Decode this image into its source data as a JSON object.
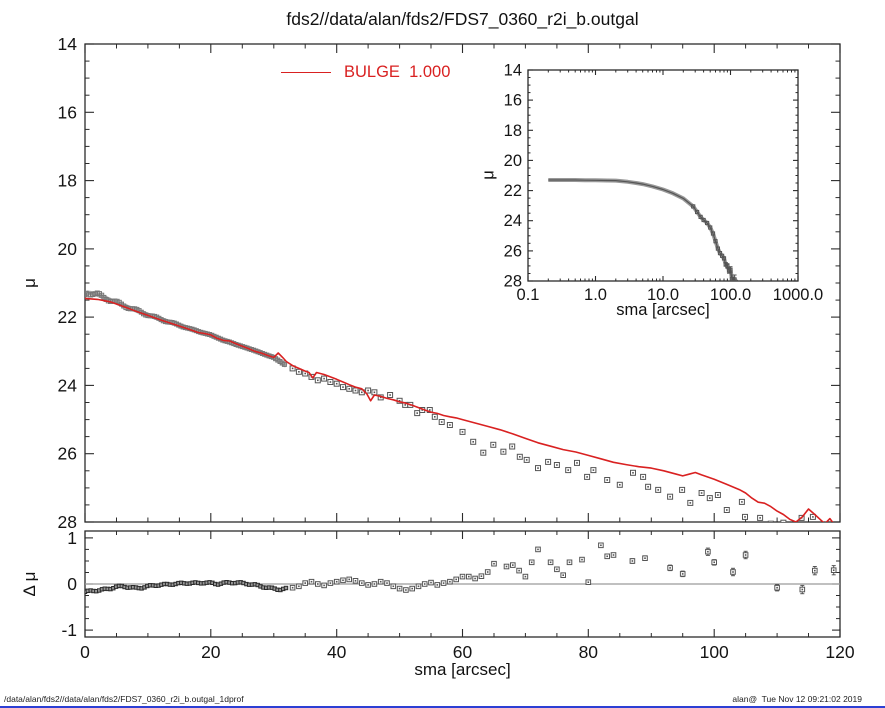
{
  "header": {
    "title": "fds2//data/alan/fds2/FDS7_0360_r2i_b.outgal"
  },
  "legend": {
    "label": "BULGE  1.000"
  },
  "footer": {
    "left": "/data/alan/fds2//data/alan/fds2/FDS7_0360_r2i_b.outgal_1dprof",
    "right": "alan@  Tue Nov 12 09:21:02 2019"
  },
  "colors": {
    "model": "#d92121",
    "marker": "#555555",
    "band": "#a2a2a2",
    "axis": "#2b2b2b",
    "zero_line": "#9a9a9a",
    "bottom_bar": "#2d3fd4"
  },
  "chart_data": [
    {
      "id": "main-profile",
      "type": "scatter",
      "title": "fds2//data/alan/fds2/FDS7_0360_r2i_b.outgal",
      "xlabel": "sma [arcsec]",
      "ylabel": "μ",
      "xlim": [
        0,
        120
      ],
      "ylim": [
        28,
        14
      ],
      "x_ticks": [
        0,
        20,
        40,
        60,
        80,
        100,
        120
      ],
      "x_minor_step": 5,
      "y_ticks": [
        14,
        16,
        18,
        20,
        22,
        24,
        26,
        28
      ],
      "y_minor_step": 0.5,
      "legend_position": "top-center",
      "grid": false,
      "series": [
        {
          "name": "observed-inner-band",
          "marker": "square",
          "x": [
            0.2,
            1,
            2,
            3,
            4,
            5,
            6,
            7,
            8,
            9,
            10,
            11,
            12,
            13,
            14,
            15,
            16,
            17,
            18,
            19,
            20,
            21,
            22,
            23,
            24,
            25,
            26,
            27,
            28,
            29,
            30,
            31,
            32
          ],
          "y": [
            21.28,
            21.3,
            21.34,
            21.42,
            21.5,
            21.57,
            21.65,
            21.72,
            21.79,
            21.86,
            21.93,
            22.0,
            22.06,
            22.12,
            22.18,
            22.24,
            22.3,
            22.36,
            22.42,
            22.47,
            22.52,
            22.6,
            22.68,
            22.73,
            22.8,
            22.86,
            22.92,
            22.98,
            23.05,
            23.12,
            23.18,
            23.3,
            23.42
          ]
        },
        {
          "name": "observed-outer",
          "marker": "square",
          "x": [
            33,
            34,
            35,
            36,
            37,
            38,
            39,
            40,
            41,
            42,
            43,
            44,
            45,
            46,
            47,
            48.5,
            50,
            50.9,
            51.7,
            52.8,
            53.6,
            54.8,
            55.6,
            56.7,
            58,
            60,
            61.7,
            63.3,
            64.9,
            66.5,
            67.9,
            69.1,
            70.2,
            72,
            73.6,
            75,
            76.8,
            78.2,
            79.8,
            80.8,
            83,
            85,
            87.1,
            88.7,
            89.5,
            91.1,
            93,
            94.9,
            96.2,
            98,
            99.3,
            100.6,
            102,
            104.4,
            104.9,
            107.3,
            109,
            111,
            113.9,
            115.7
          ],
          "y": [
            23.5,
            23.6,
            23.65,
            23.75,
            23.85,
            23.8,
            23.9,
            23.95,
            24.05,
            24.1,
            24.15,
            24.2,
            24.15,
            24.2,
            24.35,
            24.28,
            24.45,
            24.57,
            24.57,
            24.81,
            24.72,
            24.72,
            24.92,
            25.07,
            25.16,
            25.36,
            25.65,
            25.97,
            25.74,
            25.94,
            25.79,
            26.09,
            26.18,
            26.42,
            26.24,
            26.33,
            26.48,
            26.27,
            26.68,
            26.48,
            26.77,
            26.91,
            26.56,
            26.68,
            26.97,
            27.06,
            27.26,
            27.06,
            27.44,
            27.15,
            27.3,
            27.21,
            27.65,
            27.41,
            27.85,
            27.88,
            28.05,
            28.02,
            27.88,
            27.85
          ]
        },
        {
          "name": "BULGE  1.000",
          "type": "line",
          "color": "#d92121",
          "x": [
            0,
            2,
            4,
            6,
            8,
            10,
            12,
            14,
            16,
            18,
            19,
            20,
            21,
            22,
            23,
            24,
            25,
            26,
            27,
            28,
            29,
            30,
            30.7,
            31.4,
            32,
            33,
            34,
            35,
            35.6,
            36.2,
            36.8,
            38,
            39,
            40,
            41,
            42,
            43,
            44,
            44.8,
            45.4,
            46,
            47,
            48,
            49,
            50,
            51,
            52,
            53,
            54,
            55,
            56,
            57,
            58,
            59,
            60,
            62,
            64,
            66,
            68,
            70,
            72,
            74,
            76,
            78,
            80,
            82,
            84,
            86,
            88,
            90,
            92,
            94,
            95,
            96,
            97,
            98,
            100,
            102,
            104,
            105,
            106,
            107,
            108,
            109,
            110,
            111,
            112,
            113,
            114,
            115,
            116,
            117,
            117.6,
            118.4,
            119.2,
            120
          ],
          "y": [
            21.45,
            21.48,
            21.55,
            21.68,
            21.82,
            21.95,
            22.08,
            22.2,
            22.32,
            22.45,
            22.48,
            22.52,
            22.62,
            22.68,
            22.7,
            22.78,
            22.85,
            22.92,
            23.0,
            23.05,
            23.12,
            23.18,
            23.05,
            23.18,
            23.3,
            23.42,
            23.5,
            23.58,
            23.62,
            23.78,
            23.62,
            23.68,
            23.75,
            23.82,
            23.9,
            23.98,
            24.05,
            24.1,
            24.25,
            24.45,
            24.28,
            24.32,
            24.38,
            24.42,
            24.48,
            24.52,
            24.58,
            24.65,
            24.72,
            24.78,
            24.82,
            24.88,
            24.92,
            24.95,
            25.0,
            25.1,
            25.2,
            25.3,
            25.42,
            25.55,
            25.68,
            25.78,
            25.88,
            25.95,
            26.05,
            26.15,
            26.25,
            26.32,
            26.38,
            26.42,
            26.5,
            26.6,
            26.65,
            26.6,
            26.55,
            26.62,
            26.75,
            26.9,
            27.05,
            27.15,
            27.3,
            27.42,
            27.45,
            27.55,
            27.68,
            27.78,
            27.92,
            28.0,
            27.85,
            27.62,
            27.78,
            27.95,
            28.05,
            27.9,
            28.1,
            28.3
          ]
        }
      ]
    },
    {
      "id": "inset-log-profile",
      "type": "line",
      "xlabel": "sma [arcsec]",
      "ylabel": "μ",
      "xscale": "log",
      "xlim": [
        0.1,
        1000
      ],
      "ylim": [
        28,
        14
      ],
      "x_ticks": [
        0.1,
        1,
        10,
        100,
        1000
      ],
      "x_tick_labels": [
        "0.1",
        "1.0",
        "10.0",
        "100.0",
        "1000.0"
      ],
      "y_ticks": [
        14,
        16,
        18,
        20,
        22,
        24,
        26,
        28
      ],
      "y_minor_step": 0.5,
      "grid": false,
      "series": [
        {
          "name": "observed-profile",
          "marker": "square",
          "x": [
            0.2,
            0.3,
            0.5,
            0.7,
            1,
            1.5,
            2,
            3,
            4,
            5,
            7,
            10,
            14,
            20,
            28,
            32,
            36,
            40,
            45,
            50,
            55,
            60,
            65,
            70,
            75,
            80,
            85,
            90,
            95,
            100,
            105,
            110,
            115,
            120
          ],
          "y": [
            21.3,
            21.3,
            21.3,
            21.31,
            21.32,
            21.33,
            21.34,
            21.42,
            21.5,
            21.57,
            21.72,
            21.93,
            22.18,
            22.52,
            23.05,
            23.42,
            23.75,
            23.95,
            24.15,
            24.45,
            24.85,
            25.36,
            25.85,
            26.15,
            26.33,
            26.5,
            26.9,
            27.0,
            27.3,
            27.25,
            27.85,
            28.05,
            27.9,
            28.3
          ],
          "yerr": [
            0,
            0,
            0,
            0,
            0,
            0,
            0,
            0,
            0,
            0,
            0,
            0,
            0,
            0,
            0,
            0,
            0,
            0,
            0,
            0,
            0,
            0,
            0,
            0,
            0,
            0.1,
            0.12,
            0.15,
            0.18,
            0.2,
            0.25,
            0.3,
            0.3,
            0.35
          ]
        }
      ]
    },
    {
      "id": "residual",
      "type": "scatter",
      "xlabel": "sma [arcsec]",
      "ylabel": "Δ μ",
      "xlim": [
        0,
        120
      ],
      "ylim": [
        -1.15,
        1.15
      ],
      "x_ticks": [
        0,
        20,
        40,
        60,
        80,
        100,
        120
      ],
      "x_minor_step": 5,
      "y_ticks": [
        1,
        0,
        -1
      ],
      "y_minor_step": 0.25,
      "zero_line": 0,
      "grid": false,
      "series": [
        {
          "name": "residual-inner-band",
          "marker": "square",
          "x": [
            0,
            1,
            2,
            3,
            4,
            5,
            6,
            7,
            8,
            9,
            10,
            11,
            12,
            13,
            14,
            15,
            16,
            17,
            18,
            19,
            20,
            21,
            22,
            23,
            24,
            25,
            26,
            27,
            28,
            29,
            30,
            31,
            32
          ],
          "y": [
            -0.17,
            -0.15,
            -0.14,
            -0.12,
            -0.1,
            -0.06,
            -0.05,
            -0.07,
            -0.09,
            -0.08,
            -0.05,
            -0.03,
            -0.02,
            -0.01,
            0.0,
            0.01,
            0.02,
            0.02,
            0.02,
            0.03,
            0.02,
            0.0,
            0.02,
            0.03,
            0.03,
            0.02,
            0.0,
            -0.02,
            -0.05,
            -0.08,
            -0.1,
            -0.12,
            -0.1
          ]
        },
        {
          "name": "residual-outer",
          "marker": "square",
          "x": [
            33,
            34,
            35,
            36,
            37,
            38,
            39,
            40,
            41,
            42,
            43,
            44,
            45,
            46,
            47,
            48,
            49,
            50,
            51,
            52,
            53,
            54,
            55,
            56,
            57,
            58,
            59,
            60,
            61,
            62,
            63,
            64,
            65,
            67,
            68,
            69,
            70,
            71,
            72,
            74,
            75,
            76,
            77,
            79,
            80,
            82,
            83,
            84,
            87,
            89,
            93,
            95,
            99,
            100,
            103,
            105,
            110,
            114,
            116,
            119
          ],
          "y": [
            -0.08,
            -0.05,
            0.02,
            0.05,
            0.0,
            -0.03,
            0.02,
            0.05,
            0.08,
            0.1,
            0.07,
            0.02,
            -0.02,
            0.0,
            0.05,
            0.02,
            -0.05,
            -0.1,
            -0.13,
            -0.1,
            -0.05,
            0.0,
            0.03,
            -0.02,
            0.02,
            0.05,
            0.1,
            0.16,
            0.16,
            0.12,
            0.17,
            0.26,
            0.44,
            0.38,
            0.41,
            0.29,
            0.16,
            0.47,
            0.75,
            0.47,
            0.32,
            0.19,
            0.47,
            0.53,
            0.04,
            0.84,
            0.6,
            0.63,
            0.5,
            0.56,
            0.35,
            0.22,
            0.7,
            0.47,
            0.26,
            0.63,
            -0.08,
            -0.12,
            0.29,
            0.3
          ],
          "yerr": [
            0,
            0,
            0,
            0,
            0,
            0,
            0,
            0,
            0,
            0,
            0,
            0,
            0,
            0,
            0,
            0,
            0,
            0,
            0,
            0,
            0,
            0,
            0,
            0,
            0,
            0,
            0,
            0,
            0,
            0,
            0,
            0,
            0,
            0,
            0,
            0,
            0,
            0,
            0,
            0,
            0,
            0,
            0,
            0,
            0,
            0,
            0,
            0,
            0.05,
            0.05,
            0.06,
            0.06,
            0.08,
            0.06,
            0.08,
            0.08,
            0.07,
            0.09,
            0.09,
            0.1
          ]
        }
      ]
    }
  ]
}
